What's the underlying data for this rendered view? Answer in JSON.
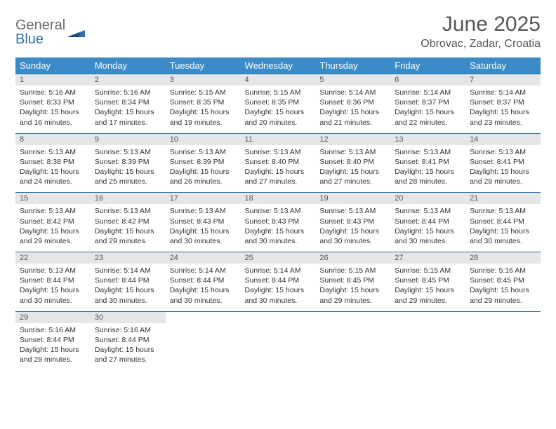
{
  "logo": {
    "word1": "General",
    "word2": "Blue"
  },
  "title": "June 2025",
  "location": "Obrovac, Zadar, Croatia",
  "colors": {
    "header_bg": "#3b8bc8",
    "header_text": "#ffffff",
    "daynum_bg": "#e6e6e6",
    "daynum_text": "#555555",
    "rule": "#2f6fa8",
    "body_text": "#333333",
    "title_text": "#565656",
    "logo_gray": "#6b6b6b",
    "logo_blue": "#2f6fa8"
  },
  "weekdays": [
    "Sunday",
    "Monday",
    "Tuesday",
    "Wednesday",
    "Thursday",
    "Friday",
    "Saturday"
  ],
  "days": [
    {
      "n": "1",
      "sr": "5:16 AM",
      "ss": "8:33 PM",
      "dl1": "Daylight: 15 hours",
      "dl2": "and 16 minutes."
    },
    {
      "n": "2",
      "sr": "5:16 AM",
      "ss": "8:34 PM",
      "dl1": "Daylight: 15 hours",
      "dl2": "and 17 minutes."
    },
    {
      "n": "3",
      "sr": "5:15 AM",
      "ss": "8:35 PM",
      "dl1": "Daylight: 15 hours",
      "dl2": "and 19 minutes."
    },
    {
      "n": "4",
      "sr": "5:15 AM",
      "ss": "8:35 PM",
      "dl1": "Daylight: 15 hours",
      "dl2": "and 20 minutes."
    },
    {
      "n": "5",
      "sr": "5:14 AM",
      "ss": "8:36 PM",
      "dl1": "Daylight: 15 hours",
      "dl2": "and 21 minutes."
    },
    {
      "n": "6",
      "sr": "5:14 AM",
      "ss": "8:37 PM",
      "dl1": "Daylight: 15 hours",
      "dl2": "and 22 minutes."
    },
    {
      "n": "7",
      "sr": "5:14 AM",
      "ss": "8:37 PM",
      "dl1": "Daylight: 15 hours",
      "dl2": "and 23 minutes."
    },
    {
      "n": "8",
      "sr": "5:13 AM",
      "ss": "8:38 PM",
      "dl1": "Daylight: 15 hours",
      "dl2": "and 24 minutes."
    },
    {
      "n": "9",
      "sr": "5:13 AM",
      "ss": "8:39 PM",
      "dl1": "Daylight: 15 hours",
      "dl2": "and 25 minutes."
    },
    {
      "n": "10",
      "sr": "5:13 AM",
      "ss": "8:39 PM",
      "dl1": "Daylight: 15 hours",
      "dl2": "and 26 minutes."
    },
    {
      "n": "11",
      "sr": "5:13 AM",
      "ss": "8:40 PM",
      "dl1": "Daylight: 15 hours",
      "dl2": "and 27 minutes."
    },
    {
      "n": "12",
      "sr": "5:13 AM",
      "ss": "8:40 PM",
      "dl1": "Daylight: 15 hours",
      "dl2": "and 27 minutes."
    },
    {
      "n": "13",
      "sr": "5:13 AM",
      "ss": "8:41 PM",
      "dl1": "Daylight: 15 hours",
      "dl2": "and 28 minutes."
    },
    {
      "n": "14",
      "sr": "5:13 AM",
      "ss": "8:41 PM",
      "dl1": "Daylight: 15 hours",
      "dl2": "and 28 minutes."
    },
    {
      "n": "15",
      "sr": "5:13 AM",
      "ss": "8:42 PM",
      "dl1": "Daylight: 15 hours",
      "dl2": "and 29 minutes."
    },
    {
      "n": "16",
      "sr": "5:13 AM",
      "ss": "8:42 PM",
      "dl1": "Daylight: 15 hours",
      "dl2": "and 29 minutes."
    },
    {
      "n": "17",
      "sr": "5:13 AM",
      "ss": "8:43 PM",
      "dl1": "Daylight: 15 hours",
      "dl2": "and 30 minutes."
    },
    {
      "n": "18",
      "sr": "5:13 AM",
      "ss": "8:43 PM",
      "dl1": "Daylight: 15 hours",
      "dl2": "and 30 minutes."
    },
    {
      "n": "19",
      "sr": "5:13 AM",
      "ss": "8:43 PM",
      "dl1": "Daylight: 15 hours",
      "dl2": "and 30 minutes."
    },
    {
      "n": "20",
      "sr": "5:13 AM",
      "ss": "8:44 PM",
      "dl1": "Daylight: 15 hours",
      "dl2": "and 30 minutes."
    },
    {
      "n": "21",
      "sr": "5:13 AM",
      "ss": "8:44 PM",
      "dl1": "Daylight: 15 hours",
      "dl2": "and 30 minutes."
    },
    {
      "n": "22",
      "sr": "5:13 AM",
      "ss": "8:44 PM",
      "dl1": "Daylight: 15 hours",
      "dl2": "and 30 minutes."
    },
    {
      "n": "23",
      "sr": "5:14 AM",
      "ss": "8:44 PM",
      "dl1": "Daylight: 15 hours",
      "dl2": "and 30 minutes."
    },
    {
      "n": "24",
      "sr": "5:14 AM",
      "ss": "8:44 PM",
      "dl1": "Daylight: 15 hours",
      "dl2": "and 30 minutes."
    },
    {
      "n": "25",
      "sr": "5:14 AM",
      "ss": "8:44 PM",
      "dl1": "Daylight: 15 hours",
      "dl2": "and 30 minutes."
    },
    {
      "n": "26",
      "sr": "5:15 AM",
      "ss": "8:45 PM",
      "dl1": "Daylight: 15 hours",
      "dl2": "and 29 minutes."
    },
    {
      "n": "27",
      "sr": "5:15 AM",
      "ss": "8:45 PM",
      "dl1": "Daylight: 15 hours",
      "dl2": "and 29 minutes."
    },
    {
      "n": "28",
      "sr": "5:16 AM",
      "ss": "8:45 PM",
      "dl1": "Daylight: 15 hours",
      "dl2": "and 29 minutes."
    },
    {
      "n": "29",
      "sr": "5:16 AM",
      "ss": "8:44 PM",
      "dl1": "Daylight: 15 hours",
      "dl2": "and 28 minutes."
    },
    {
      "n": "30",
      "sr": "5:16 AM",
      "ss": "8:44 PM",
      "dl1": "Daylight: 15 hours",
      "dl2": "and 27 minutes."
    }
  ],
  "labels": {
    "sunrise": "Sunrise:",
    "sunset": "Sunset:"
  }
}
